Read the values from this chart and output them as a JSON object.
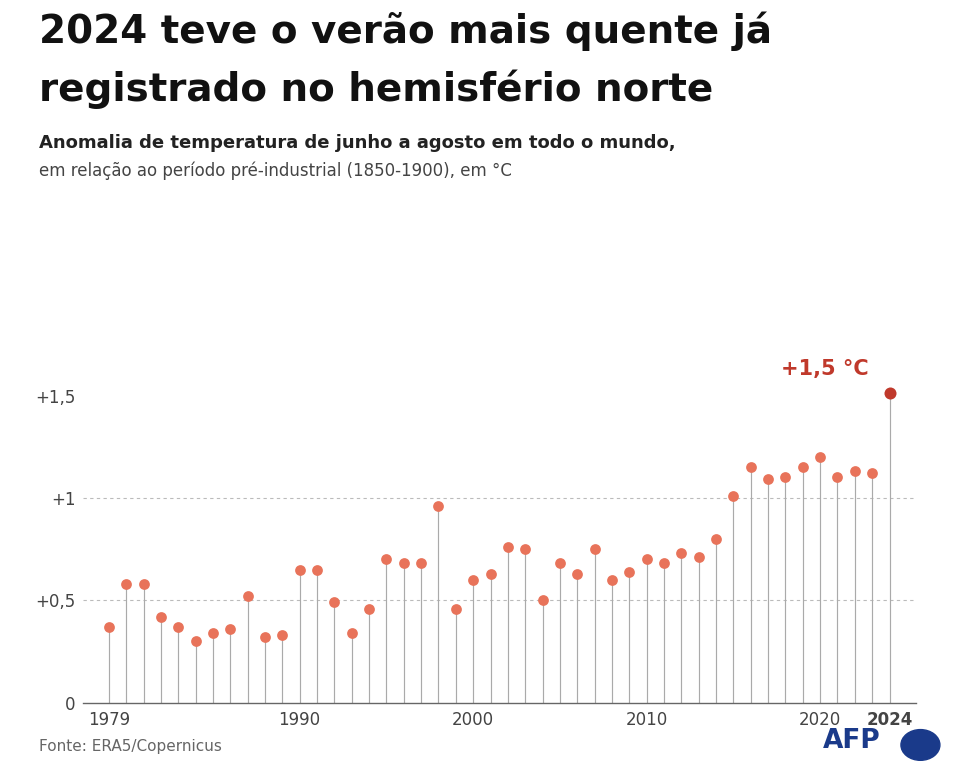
{
  "title_line1": "2024 teve o verão mais quente já",
  "title_line2": "registrado no hemisfério norte",
  "subtitle1": "Anomalia de temperatura de junho a agosto em todo o mundo,",
  "subtitle2": "em relação ao período pré-industrial (1850-1900), em °C",
  "source": "Fonte: ERA5/Copernicus",
  "annotation_2024": "+1,5 °C",
  "years": [
    1979,
    1980,
    1981,
    1982,
    1983,
    1984,
    1985,
    1986,
    1987,
    1988,
    1989,
    1990,
    1991,
    1992,
    1993,
    1994,
    1995,
    1996,
    1997,
    1998,
    1999,
    2000,
    2001,
    2002,
    2003,
    2004,
    2005,
    2006,
    2007,
    2008,
    2009,
    2010,
    2011,
    2012,
    2013,
    2014,
    2015,
    2016,
    2017,
    2018,
    2019,
    2020,
    2021,
    2022,
    2023,
    2024
  ],
  "values": [
    0.37,
    0.58,
    0.58,
    0.42,
    0.37,
    0.3,
    0.34,
    0.36,
    0.52,
    0.32,
    0.33,
    0.65,
    0.65,
    0.49,
    0.34,
    0.46,
    0.7,
    0.68,
    0.68,
    0.96,
    0.46,
    0.6,
    0.63,
    0.76,
    0.75,
    0.5,
    0.68,
    0.63,
    0.75,
    0.6,
    0.64,
    0.7,
    0.68,
    0.73,
    0.71,
    0.8,
    1.01,
    1.15,
    1.09,
    1.1,
    1.15,
    1.2,
    1.1,
    1.13,
    1.12,
    1.51
  ],
  "dot_color": "#E8735A",
  "dot_color_2024": "#C0392B",
  "line_color": "#AAAAAA",
  "background_color": "#FFFFFF",
  "yticks": [
    0,
    0.5,
    1.0,
    1.5
  ],
  "ytick_labels": [
    "0",
    "+0,5",
    "+1",
    "+1,5"
  ],
  "xlim": [
    1977.5,
    2025.5
  ],
  "ylim": [
    0,
    1.65
  ],
  "title_fontsize": 28,
  "subtitle1_fontsize": 13,
  "subtitle2_fontsize": 12,
  "source_fontsize": 11,
  "tick_fontsize": 12,
  "annot_fontsize": 15
}
